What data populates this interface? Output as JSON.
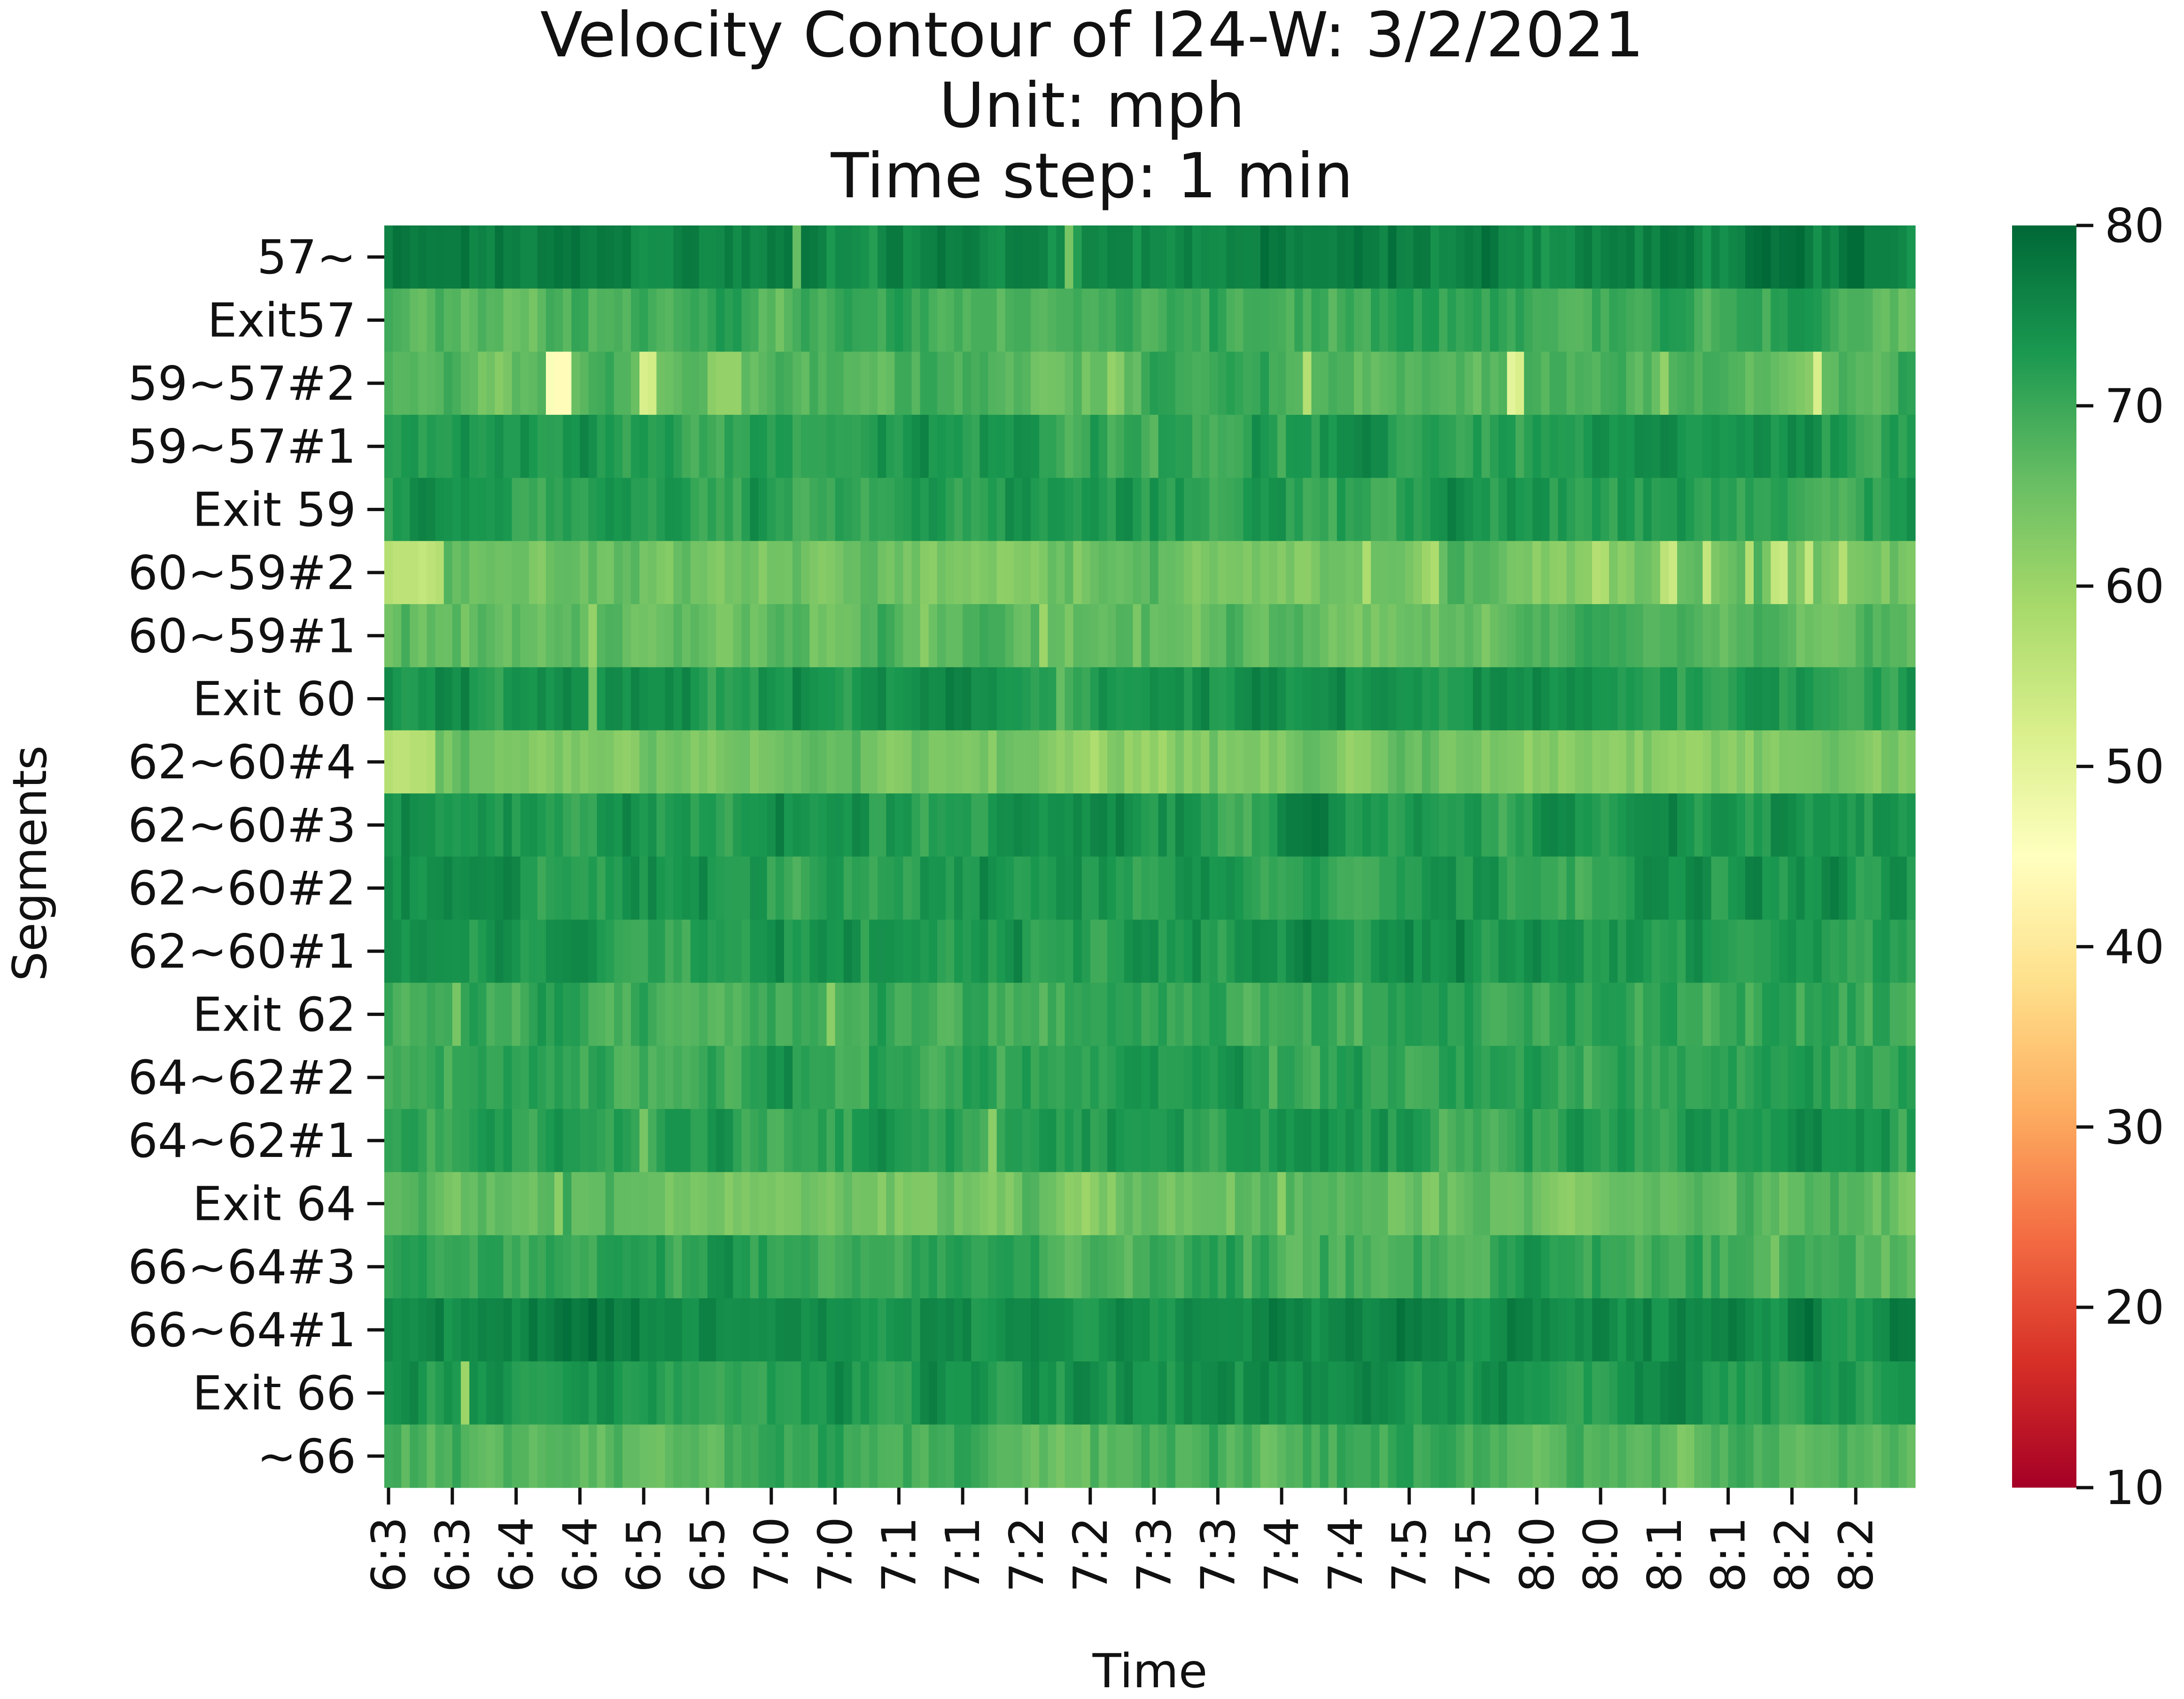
{
  "chart_data": {
    "type": "heatmap",
    "title_lines": [
      "Velocity Contour of I24-W: 3/2/2021",
      "Unit: mph",
      "Time step: 1 min"
    ],
    "xlabel": "Time",
    "ylabel": "Segments",
    "y_categories": [
      "57~",
      "Exit57",
      "59~57#2",
      "59~57#1",
      "Exit 59",
      "60~59#2",
      "60~59#1",
      "Exit 60",
      "62~60#4",
      "62~60#3",
      "62~60#2",
      "62~60#1",
      "Exit 62",
      "64~62#2",
      "64~62#1",
      "Exit 64",
      "66~64#3",
      "66~64#1",
      "Exit 66",
      "~66"
    ],
    "x_tick_labels": [
      "6:3",
      "6:3",
      "6:4",
      "6:4",
      "6:5",
      "6:5",
      "7:0",
      "7:0",
      "7:1",
      "7:1",
      "7:2",
      "7:2",
      "7:3",
      "7:3",
      "7:4",
      "7:4",
      "7:5",
      "7:5",
      "8:0",
      "8:0",
      "8:1",
      "8:1",
      "8:2",
      "8:2"
    ],
    "colorbar": {
      "colormap": "RdYlGn",
      "range": [
        10,
        80
      ],
      "ticks": [
        10,
        20,
        30,
        40,
        50,
        60,
        70,
        80
      ],
      "stops": [
        "#a50026",
        "#d73027",
        "#f46d43",
        "#fdae61",
        "#fee08b",
        "#ffffbf",
        "#d9ef8b",
        "#a6d96a",
        "#66bd63",
        "#1a9850",
        "#006837"
      ]
    },
    "row_profiles": [
      {
        "segment": "57~",
        "base": 76,
        "events": [
          {
            "minute": 48,
            "value": 66
          },
          {
            "minute": 80,
            "value": 64
          },
          {
            "minute": 180,
            "value": 64
          },
          {
            "minute": 184,
            "value": 63
          }
        ]
      },
      {
        "segment": "Exit57",
        "base": 69,
        "events": []
      },
      {
        "segment": "59~57#2",
        "base": 68,
        "events": [
          {
            "minute": 19,
            "value": 46
          },
          {
            "minute": 20,
            "value": 44
          },
          {
            "minute": 21,
            "value": 44
          },
          {
            "minute": 30,
            "value": 52
          },
          {
            "minute": 31,
            "value": 53
          },
          {
            "minute": 38,
            "value": 62
          },
          {
            "minute": 39,
            "value": 61
          },
          {
            "minute": 40,
            "value": 61
          },
          {
            "minute": 41,
            "value": 61
          },
          {
            "minute": 82,
            "value": 64
          },
          {
            "minute": 85,
            "value": 61
          },
          {
            "minute": 108,
            "value": 57
          },
          {
            "minute": 132,
            "value": 50
          },
          {
            "minute": 133,
            "value": 52
          },
          {
            "minute": 150,
            "value": 61
          },
          {
            "minute": 168,
            "value": 52
          },
          {
            "minute": 180,
            "value": 58
          },
          {
            "minute": 181,
            "value": 60
          }
        ]
      },
      {
        "segment": "59~57#1",
        "base": 72,
        "events": []
      },
      {
        "segment": "Exit 59",
        "base": 72,
        "events": []
      },
      {
        "segment": "60~59#2",
        "base": 65,
        "events": [
          {
            "minute": 0,
            "value": 57
          },
          {
            "minute": 1,
            "value": 56
          },
          {
            "minute": 2,
            "value": 56
          },
          {
            "minute": 3,
            "value": 56
          },
          {
            "minute": 4,
            "value": 55
          },
          {
            "minute": 5,
            "value": 56
          },
          {
            "minute": 6,
            "value": 57
          },
          {
            "minute": 115,
            "value": 58
          },
          {
            "minute": 122,
            "value": 60
          },
          {
            "minute": 123,
            "value": 58
          },
          {
            "minute": 142,
            "value": 57
          },
          {
            "minute": 143,
            "value": 58
          },
          {
            "minute": 150,
            "value": 56
          },
          {
            "minute": 151,
            "value": 54
          },
          {
            "minute": 155,
            "value": 55
          },
          {
            "minute": 160,
            "value": 57
          },
          {
            "minute": 163,
            "value": 55
          },
          {
            "minute": 164,
            "value": 54
          },
          {
            "minute": 167,
            "value": 55
          },
          {
            "minute": 171,
            "value": 57
          }
        ]
      },
      {
        "segment": "60~59#1",
        "base": 66,
        "events": [
          {
            "minute": 24,
            "value": 61
          },
          {
            "minute": 77,
            "value": 60
          }
        ]
      },
      {
        "segment": "Exit 60",
        "base": 73,
        "events": [
          {
            "minute": 24,
            "value": 64
          },
          {
            "minute": 79,
            "value": 66
          }
        ]
      },
      {
        "segment": "62~60#4",
        "base": 64,
        "events": [
          {
            "minute": 0,
            "value": 57
          },
          {
            "minute": 1,
            "value": 56
          },
          {
            "minute": 2,
            "value": 56
          },
          {
            "minute": 3,
            "value": 57
          },
          {
            "minute": 4,
            "value": 57
          },
          {
            "minute": 5,
            "value": 58
          }
        ]
      },
      {
        "segment": "62~60#3",
        "base": 73,
        "events": []
      },
      {
        "segment": "62~60#2",
        "base": 73,
        "events": []
      },
      {
        "segment": "62~60#1",
        "base": 73,
        "events": []
      },
      {
        "segment": "Exit 62",
        "base": 70,
        "events": [
          {
            "minute": 52,
            "value": 62
          },
          {
            "minute": 8,
            "value": 64
          }
        ]
      },
      {
        "segment": "64~62#2",
        "base": 71,
        "events": []
      },
      {
        "segment": "64~62#1",
        "base": 72,
        "events": [
          {
            "minute": 30,
            "value": 64
          },
          {
            "minute": 71,
            "value": 62
          }
        ]
      },
      {
        "segment": "Exit 64",
        "base": 66,
        "events": [
          {
            "minute": 20,
            "value": 62
          },
          {
            "minute": 105,
            "value": 62
          }
        ]
      },
      {
        "segment": "66~64#3",
        "base": 70,
        "events": [
          {
            "minute": 163,
            "value": 64
          }
        ]
      },
      {
        "segment": "66~64#1",
        "base": 75,
        "events": []
      },
      {
        "segment": "Exit 66",
        "base": 74,
        "events": [
          {
            "minute": 9,
            "value": 60
          }
        ]
      },
      {
        "segment": "~66",
        "base": 68,
        "events": []
      }
    ],
    "n_minutes": 180
  }
}
